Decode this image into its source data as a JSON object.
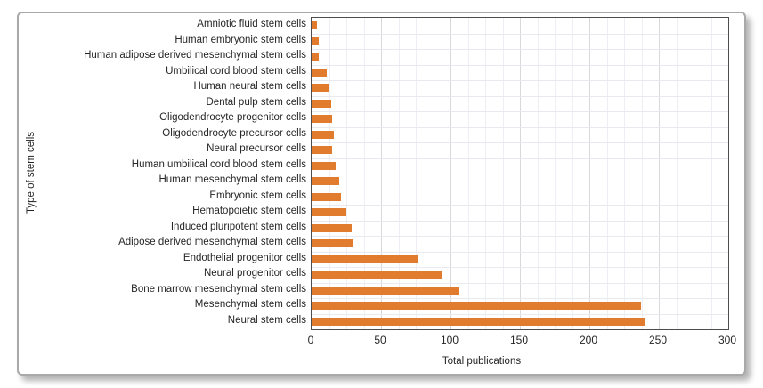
{
  "figure": {
    "background": "#ffffff",
    "border_color": "#a9a9a9"
  },
  "chart_data": {
    "type": "bar",
    "orientation": "horizontal",
    "title": "",
    "xlabel": "Total publications",
    "ylabel": "Type of stem cells",
    "categories": [
      "Amniotic fluid stem cells",
      "Human embryonic stem cells",
      "Human adipose derived mesenchymal stem cells",
      "Umbilical cord blood stem cells",
      "Human neural stem cells",
      "Dental pulp stem cells",
      "Oligodendrocyte progenitor cells",
      "Oligodendrocyte precursor cells",
      "Neural precursor cells",
      "Human umbilical cord blood stem cells",
      "Human mesenchymal stem cells",
      "Embryonic stem cells",
      "Hematopoietic stem cells",
      "Induced pluripotent stem cells",
      "Adipose derived mesenchymal stem cells",
      "Endothelial progenitor cells",
      "Neural progenitor cells",
      "Bone marrow mesenchymal stem cells",
      "Mesenchymal stem cells",
      "Neural stem cells"
    ],
    "values": [
      4,
      5,
      5,
      11,
      12,
      14,
      15,
      16,
      15,
      17,
      20,
      21,
      25,
      29,
      30,
      76,
      94,
      106,
      237,
      240
    ],
    "xlim": [
      0,
      300
    ],
    "x_ticks": [
      "0",
      "50",
      "100",
      "150",
      "200",
      "250",
      "300"
    ],
    "x_tick_values": [
      0,
      50,
      100,
      150,
      200,
      250,
      300
    ],
    "minor_tick_step": 12.5,
    "bar_color": "#e17b2e",
    "grid": {
      "vertical_major_color": "#d9d9d9",
      "vertical_minor_color": "#edeff4",
      "horizontal_color": "#e8eaef",
      "grid_on": true
    },
    "legend": "none"
  }
}
